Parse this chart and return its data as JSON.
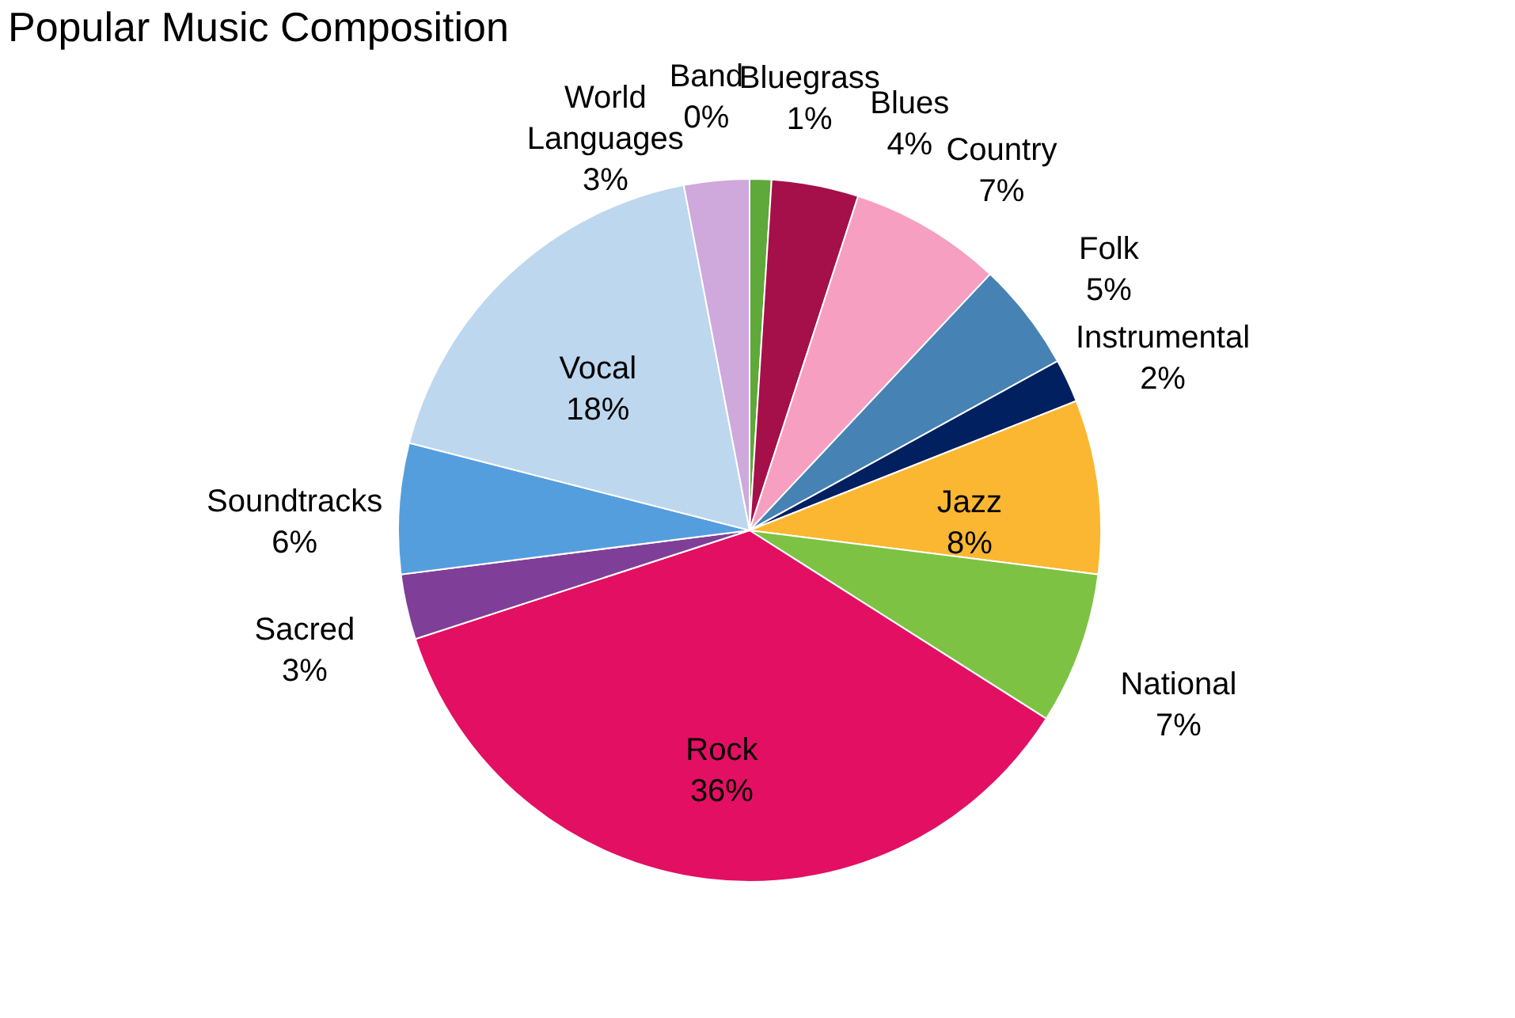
{
  "chart_data": {
    "type": "pie",
    "title": "Popular Music Composition",
    "categories": [
      "Band",
      "Bluegrass",
      "Blues",
      "Country",
      "Folk",
      "Instrumental",
      "Jazz",
      "National",
      "Rock",
      "Sacred",
      "Soundtracks",
      "Vocal",
      "World Languages"
    ],
    "values": [
      0,
      1,
      4,
      7,
      5,
      2,
      8,
      7,
      36,
      3,
      6,
      18,
      3
    ],
    "value_labels": [
      "0%",
      "1%",
      "4%",
      "7%",
      "5%",
      "2%",
      "8%",
      "7%",
      "36%",
      "3%",
      "6%",
      "18%",
      "3%"
    ],
    "colors": [
      "#f2f2f2",
      "#5fa83a",
      "#a50f4a",
      "#f79fc0",
      "#4682b4",
      "#002060",
      "#fbb731",
      "#7dc243",
      "#e30f63",
      "#7f3f98",
      "#559ede",
      "#bdd7ee",
      "#cfa8dc"
    ],
    "legend": false
  }
}
